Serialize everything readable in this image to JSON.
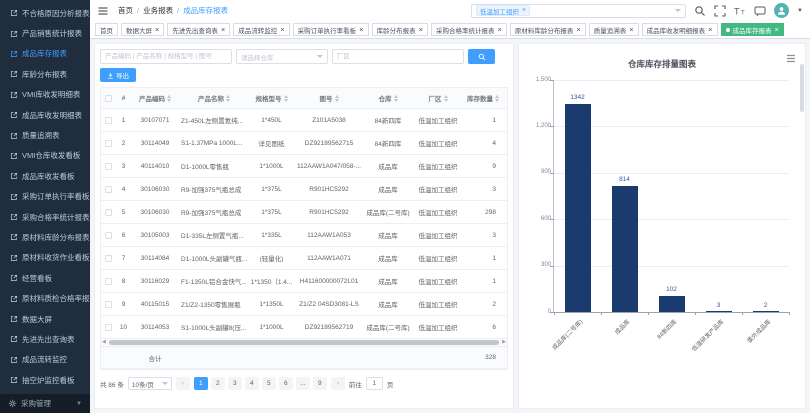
{
  "colors": {
    "accent": "#409eff",
    "active_tab": "#42b983",
    "bar": "#1b3a6e",
    "sidebar_bg": "#1f2d3d"
  },
  "breadcrumb": {
    "items": [
      "首页",
      "业务报表",
      "成品库存报表"
    ]
  },
  "sidebar": {
    "items": [
      {
        "label": "不合格原因分析报表",
        "active": false
      },
      {
        "label": "产品销售统计报表",
        "active": false
      },
      {
        "label": "成品库存报表",
        "active": true
      },
      {
        "label": "库龄分布报表",
        "active": false
      },
      {
        "label": "VMI库收发明细表",
        "active": false
      },
      {
        "label": "成品库收发明细表",
        "active": false
      },
      {
        "label": "质量追溯表",
        "active": false
      },
      {
        "label": "VMI仓库收发看板",
        "active": false
      },
      {
        "label": "成品库收发看板",
        "active": false
      },
      {
        "label": "采购订单执行率看板",
        "active": false
      },
      {
        "label": "采购合格率统计报表",
        "active": false
      },
      {
        "label": "原材料库龄分布报表",
        "active": false
      },
      {
        "label": "原材料收货作业看板",
        "active": false
      },
      {
        "label": "经营看板",
        "active": false
      },
      {
        "label": "原材料质检合格率报表",
        "active": false
      },
      {
        "label": "数据大屏",
        "active": false
      },
      {
        "label": "先进先出查询表",
        "active": false
      },
      {
        "label": "成品流转监控",
        "active": false
      },
      {
        "label": "抽空炉监控看板",
        "active": false
      }
    ],
    "bottom_label": "采购管理"
  },
  "header": {
    "org_tag": "低温加工组织"
  },
  "tabbar": {
    "tabs": [
      {
        "label": "首页",
        "closable": false,
        "active": false
      },
      {
        "label": "数据大屏",
        "closable": true,
        "active": false
      },
      {
        "label": "先进先出查询表",
        "closable": true,
        "active": false
      },
      {
        "label": "成品流转监控",
        "closable": true,
        "active": false
      },
      {
        "label": "采购订单执行率看板",
        "closable": true,
        "active": false
      },
      {
        "label": "库龄分布报表",
        "closable": true,
        "active": false
      },
      {
        "label": "采购合格率统计报表",
        "closable": true,
        "active": false
      },
      {
        "label": "原材料库龄分布报表",
        "closable": true,
        "active": false
      },
      {
        "label": "质量追溯表",
        "closable": true,
        "active": false
      },
      {
        "label": "成品库收发明细报表",
        "closable": true,
        "active": false
      },
      {
        "label": "成品库存报表",
        "closable": true,
        "active": true
      }
    ]
  },
  "filters": {
    "keyword_placeholder": "产品编码 | 产品名称 | 规格型号 | 图号",
    "warehouse_placeholder": "请选择仓库",
    "factory_placeholder": "厂区"
  },
  "toolbar": {
    "export_label": "导出"
  },
  "table": {
    "columns": [
      "#",
      "产品编码",
      "产品名称",
      "规格型号",
      "图号",
      "仓库",
      "厂区",
      "库存数量"
    ],
    "rows": [
      [
        "1",
        "30107071",
        "Z1-450L左侧置氦纯...",
        "1*450L",
        "Z101A5038",
        "84新四库",
        "低温加工组织",
        "1"
      ],
      [
        "2",
        "30114049",
        "S1-1.37MPa 1000L...",
        "详见图纸",
        "DZ92189562715",
        "84新四库",
        "低温加工组织",
        "4"
      ],
      [
        "3",
        "40114010",
        "D1-1000L零售瓶",
        "1*1000L",
        "112AAW1A047/058-...",
        "成品库",
        "低温加工组织",
        "9"
      ],
      [
        "4",
        "30106030",
        "R9-加强375气瓶总成",
        "1*375L",
        "R901HC5292",
        "成品库",
        "低温加工组织",
        "3"
      ],
      [
        "5",
        "30106030",
        "R9-加强375气瓶总成",
        "1*375L",
        "R901HC5292",
        "成品库(二号库)",
        "低温加工组织",
        "298"
      ],
      [
        "6",
        "30105003",
        "D1-335L左侧置气瓶...",
        "1*335L",
        "112AAW1A053",
        "成品库",
        "低温加工组织",
        "3"
      ],
      [
        "7",
        "30114084",
        "D1-1000L头副罐气瓶...",
        "(轻量化)",
        "112AAW1A071",
        "成品库",
        "低温加工组织",
        "1"
      ],
      [
        "8",
        "30116029",
        "F1-1350L铝合金快气...",
        "1*1350（1.4...",
        "H411600000072L01",
        "成品库",
        "低温加工组织",
        "1"
      ],
      [
        "9",
        "40115015",
        "Z1/Z2-1350零售展瓶",
        "1*1350L",
        "Z1/Z2 04SD3081-LS",
        "成品库",
        "低温加工组织",
        "2"
      ],
      [
        "10",
        "30114053",
        "S1-1000L头副罐8(压...",
        "1*1000L",
        "DZ92189562719",
        "成品库(二号库)",
        "低温加工组织",
        "6"
      ]
    ],
    "total_label": "合计",
    "total_value": "328"
  },
  "pagination": {
    "total_text": "共 86 条",
    "page_size": "10条/页",
    "prev": "‹",
    "next": "›",
    "pages": [
      "1",
      "2",
      "3",
      "4",
      "5",
      "6",
      "...",
      "9"
    ],
    "active_page": "1",
    "goto_label": "前往",
    "goto_value": "1",
    "goto_suffix": "页"
  },
  "chart_data": {
    "type": "bar",
    "title": "仓库库存排量图表",
    "categories": [
      "成品库(二号库)",
      "成品库",
      "84新四库",
      "低温研发产品库",
      "委外成品库"
    ],
    "values": [
      1342,
      814,
      102,
      3,
      2
    ],
    "value_labels": [
      "1342",
      "814",
      "102",
      "3",
      "2"
    ],
    "xlabel": "",
    "ylabel": "",
    "ylim": [
      0,
      1500
    ],
    "yticks": [
      "1,500",
      "1,200",
      "900",
      "600",
      "300",
      "0"
    ],
    "grid": true,
    "legend_position": "none",
    "bar_color": "#1b3a6e",
    "label_color": "#2f5b9e"
  },
  "icons": {
    "menu-link": "external-link",
    "hamburger": "menu",
    "search": "magnifier",
    "fullscreen": "expand",
    "font-size": "text-size",
    "message": "chat-bubble",
    "gear": "settings",
    "download": "export-arrow",
    "toolbox": "chart-menu"
  }
}
